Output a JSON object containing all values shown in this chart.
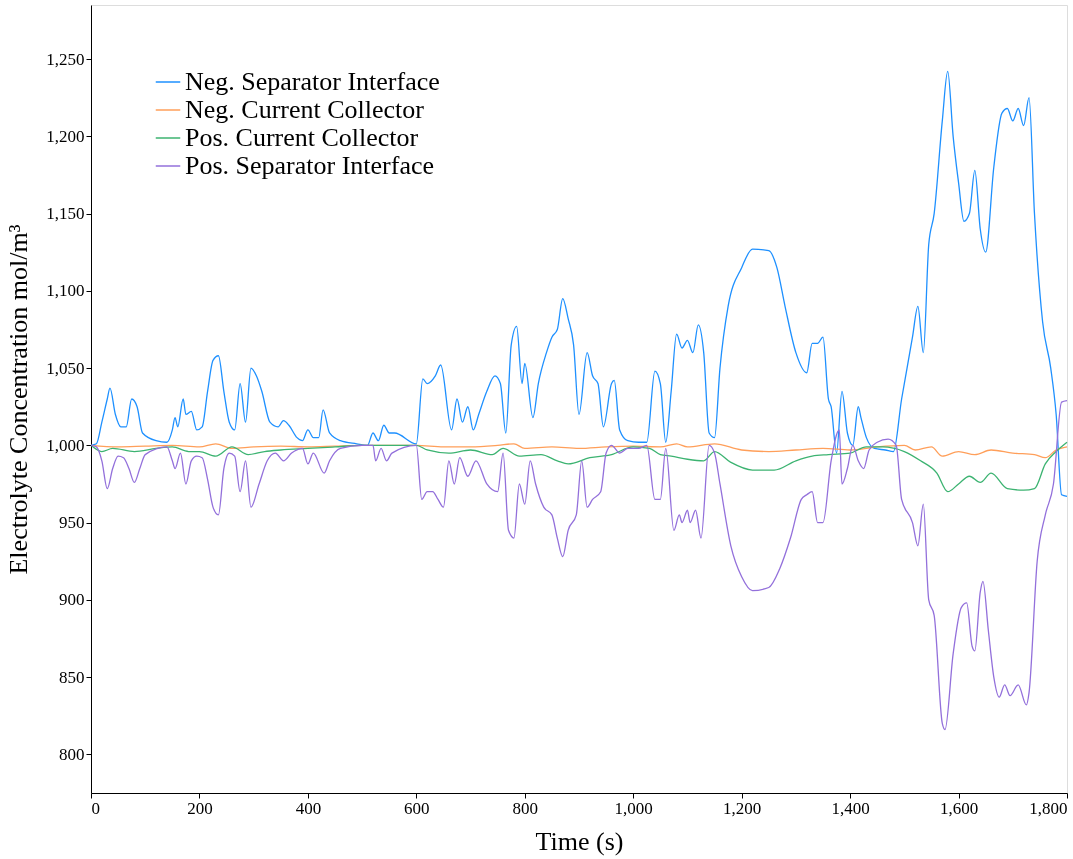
{
  "chart_data": {
    "type": "line",
    "xlabel": "Time (s)",
    "ylabel": "Electrolyte Concentration mol/m³",
    "xlim": [
      0,
      1800
    ],
    "xticks": [
      0,
      {
        "value": 200,
        "label": "200"
      },
      {
        "value": 400,
        "label": "400"
      },
      {
        "value": 600,
        "label": "600"
      },
      {
        "value": 800,
        "label": "800"
      },
      {
        "value": 1000,
        "label": "1,000"
      },
      {
        "value": 1200,
        "label": "1,200"
      },
      {
        "value": 1400,
        "label": "1,400"
      },
      {
        "value": 1600,
        "label": "1,600"
      },
      {
        "value": 1800,
        "label": "1,800"
      }
    ],
    "ylim": [
      775,
      1285
    ],
    "yticks": [
      800,
      850,
      900,
      950,
      {
        "value": 1000,
        "label": "1,000"
      },
      {
        "value": 1050,
        "label": "1,050"
      },
      {
        "value": 1100,
        "label": "1,100"
      },
      {
        "value": 1150,
        "label": "1,150"
      },
      {
        "value": 1200,
        "label": "1,200"
      },
      {
        "value": 1250,
        "label": "1,250"
      }
    ],
    "grid": false,
    "legend": "top left",
    "marker": "none",
    "line_style": "solid",
    "series": [
      {
        "name": "Neg. Separator Interface",
        "color": "#1e90ff",
        "x": [
          0,
          10,
          20,
          30,
          35,
          45,
          55,
          65,
          75,
          85,
          95,
          120,
          140,
          150,
          155,
          160,
          170,
          175,
          185,
          195,
          205,
          215,
          225,
          235,
          245,
          255,
          265,
          275,
          285,
          295,
          305,
          315,
          330,
          345,
          355,
          365,
          380,
          390,
          400,
          410,
          420,
          428,
          440,
          460,
          490,
          510,
          520,
          530,
          540,
          550,
          560,
          600,
          612,
          620,
          635,
          645,
          665,
          675,
          685,
          695,
          705,
          715,
          730,
          745,
          755,
          765,
          775,
          785,
          795,
          800,
          815,
          825,
          840,
          850,
          860,
          870,
          880,
          890,
          900,
          915,
          925,
          935,
          945,
          960,
          965,
          975,
          990,
          1010,
          1025,
          1040,
          1050,
          1060,
          1070,
          1080,
          1090,
          1100,
          1110,
          1120,
          1130,
          1140,
          1150,
          1160,
          1175,
          1200,
          1220,
          1250,
          1265,
          1280,
          1300,
          1320,
          1330,
          1340,
          1350,
          1360,
          1365,
          1375,
          1385,
          1395,
          1405,
          1415,
          1420,
          1430,
          1445,
          1465,
          1480,
          1495,
          1505,
          1515,
          1525,
          1535,
          1545,
          1555,
          1570,
          1580,
          1590,
          1600,
          1610,
          1620,
          1630,
          1640,
          1650,
          1665,
          1680,
          1690,
          1700,
          1710,
          1720,
          1730,
          1740,
          1755,
          1770,
          1780,
          1790,
          1800
        ],
        "values": [
          1000,
          1001,
          1015,
          1030,
          1037,
          1020,
          1012,
          1012,
          1030,
          1025,
          1008,
          1003,
          1002,
          1010,
          1018,
          1012,
          1030,
          1020,
          1022,
          1010,
          1012,
          1035,
          1055,
          1058,
          1035,
          1015,
          1010,
          1040,
          1015,
          1050,
          1045,
          1035,
          1015,
          1012,
          1016,
          1013,
          1005,
          1003,
          1010,
          1005,
          1005,
          1023,
          1008,
          1003,
          1001,
          1000,
          1008,
          1003,
          1013,
          1008,
          1008,
          1001,
          1043,
          1040,
          1045,
          1052,
          1010,
          1030,
          1015,
          1025,
          1010,
          1020,
          1035,
          1045,
          1040,
          1008,
          1065,
          1077,
          1040,
          1053,
          1018,
          1040,
          1060,
          1070,
          1075,
          1095,
          1082,
          1065,
          1020,
          1060,
          1045,
          1040,
          1012,
          1040,
          1042,
          1010,
          1003,
          1002,
          1002,
          1048,
          1040,
          1002,
          1035,
          1072,
          1063,
          1068,
          1060,
          1078,
          1060,
          1008,
          1005,
          1050,
          1090,
          1115,
          1127,
          1126,
          1115,
          1090,
          1060,
          1047,
          1066,
          1066,
          1070,
          1030,
          1025,
          995,
          1035,
          1008,
          1000,
          1025,
          1018,
          1005,
          998,
          997,
          996,
          1030,
          1050,
          1070,
          1090,
          1060,
          1130,
          1150,
          1210,
          1242,
          1200,
          1170,
          1145,
          1150,
          1178,
          1140,
          1125,
          1180,
          1215,
          1218,
          1210,
          1218,
          1207,
          1225,
          1150,
          1080,
          1050,
          1020,
          968,
          967
        ]
      },
      {
        "name": "Neg. Current Collector",
        "color": "#ff9f5a",
        "x": [
          0,
          50,
          100,
          150,
          200,
          230,
          260,
          300,
          350,
          400,
          450,
          500,
          600,
          650,
          700,
          750,
          780,
          800,
          850,
          900,
          950,
          1000,
          1050,
          1080,
          1100,
          1150,
          1200,
          1250,
          1300,
          1350,
          1400,
          1450,
          1500,
          1520,
          1550,
          1570,
          1600,
          1630,
          1660,
          1700,
          1740,
          1760,
          1780,
          1800
        ],
        "values": [
          1000,
          999,
          999.5,
          1000,
          999,
          1001,
          998,
          999,
          999.5,
          999,
          999.5,
          1000,
          1000,
          999,
          999,
          1000,
          1001,
          998,
          999,
          998,
          999,
          999.5,
          999,
          1001,
          999,
          1001,
          997,
          996,
          997,
          998,
          997,
          999,
          1000,
          997,
          999,
          993,
          996,
          994,
          997,
          995,
          994,
          992,
          997,
          999
        ]
      },
      {
        "name": "Pos. Current Collector",
        "color": "#3cb371",
        "x": [
          0,
          20,
          40,
          80,
          120,
          150,
          180,
          200,
          230,
          260,
          290,
          320,
          350,
          400,
          450,
          500,
          600,
          620,
          660,
          700,
          740,
          760,
          790,
          830,
          860,
          880,
          920,
          960,
          1000,
          1030,
          1050,
          1070,
          1100,
          1130,
          1150,
          1180,
          1220,
          1260,
          1300,
          1330,
          1360,
          1400,
          1430,
          1460,
          1500,
          1530,
          1560,
          1580,
          1600,
          1620,
          1640,
          1660,
          1690,
          1720,
          1740,
          1760,
          1780,
          1800
        ],
        "values": [
          1000,
          996,
          998,
          996,
          998,
          999,
          996,
          996,
          993,
          999,
          994,
          996,
          997,
          998,
          999,
          1000,
          1000,
          997,
          995,
          997,
          994,
          998,
          993,
          994,
          990,
          988,
          992,
          994,
          999,
          998,
          994,
          993,
          991,
          990,
          996,
          989,
          984,
          984,
          990,
          993,
          994,
          995,
          999,
          999,
          996,
          990,
          982,
          970,
          975,
          980,
          976,
          982,
          972,
          971,
          972,
          988,
          996,
          1002
        ]
      },
      {
        "name": "Pos. Separator Interface",
        "color": "#9370db",
        "x": [
          0,
          10,
          20,
          30,
          40,
          50,
          60,
          70,
          80,
          90,
          100,
          140,
          150,
          155,
          165,
          175,
          185,
          195,
          205,
          215,
          225,
          235,
          245,
          255,
          265,
          275,
          285,
          295,
          310,
          325,
          340,
          355,
          370,
          390,
          400,
          410,
          430,
          440,
          460,
          500,
          520,
          525,
          535,
          545,
          555,
          600,
          610,
          620,
          630,
          640,
          650,
          660,
          670,
          680,
          695,
          710,
          730,
          750,
          760,
          770,
          780,
          790,
          800,
          810,
          820,
          835,
          850,
          860,
          870,
          880,
          895,
          905,
          915,
          925,
          940,
          950,
          960,
          975,
          990,
          1010,
          1025,
          1040,
          1050,
          1060,
          1075,
          1085,
          1090,
          1100,
          1105,
          1115,
          1125,
          1140,
          1150,
          1160,
          1180,
          1200,
          1220,
          1250,
          1270,
          1290,
          1310,
          1320,
          1330,
          1340,
          1350,
          1365,
          1380,
          1385,
          1395,
          1405,
          1415,
          1425,
          1435,
          1450,
          1470,
          1485,
          1495,
          1515,
          1525,
          1535,
          1545,
          1555,
          1570,
          1575,
          1590,
          1605,
          1615,
          1625,
          1630,
          1640,
          1645,
          1655,
          1665,
          1675,
          1685,
          1695,
          1710,
          1725,
          1730,
          1745,
          1760,
          1775,
          1790,
          1800
        ],
        "values": [
          1000,
          999,
          990,
          972,
          985,
          993,
          992,
          985,
          976,
          985,
          994,
          999,
          990,
          985,
          995,
          975,
          990,
          993,
          992,
          978,
          960,
          955,
          985,
          995,
          993,
          970,
          990,
          960,
          975,
          990,
          995,
          990,
          995,
          998,
          988,
          995,
          982,
          990,
          998,
          1000,
          1000,
          990,
          998,
          990,
          995,
          1000,
          965,
          970,
          970,
          965,
          960,
          990,
          975,
          992,
          980,
          990,
          975,
          970,
          995,
          945,
          940,
          975,
          962,
          990,
          975,
          960,
          955,
          940,
          928,
          945,
          955,
          990,
          960,
          965,
          970,
          995,
          1000,
          995,
          998,
          998,
          1000,
          965,
          965,
          998,
          945,
          955,
          950,
          958,
          950,
          958,
          940,
          1000,
          995,
          975,
          935,
          915,
          906,
          908,
          920,
          940,
          965,
          968,
          970,
          950,
          950,
          990,
          1010,
          975,
          985,
          1000,
          990,
          985,
          997,
          1002,
          1004,
          1000,
          965,
          950,
          935,
          962,
          900,
          890,
          820,
          816,
          865,
          895,
          898,
          870,
          867,
          905,
          912,
          880,
          850,
          837,
          845,
          838,
          845,
          832,
          840,
          925,
          955,
          975,
          1028,
          1029
        ]
      }
    ]
  }
}
